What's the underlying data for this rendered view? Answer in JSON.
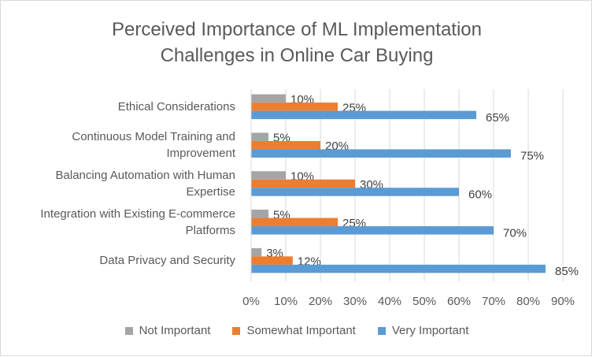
{
  "chart_data": {
    "type": "bar",
    "orientation": "horizontal",
    "title": "Perceived Importance of ML Implementation\nChallenges in Online Car Buying",
    "categories": [
      "Ethical Considerations",
      "Continuous Model Training and\nImprovement",
      "Balancing Automation with Human\nExpertise",
      "Integration with Existing E-commerce\nPlatforms",
      "Data Privacy and Security"
    ],
    "series": [
      {
        "name": "Not Important",
        "color": "#a5a5a5",
        "values": [
          10,
          5,
          10,
          5,
          3
        ]
      },
      {
        "name": "Somewhat Important",
        "color": "#ed7d31",
        "values": [
          25,
          20,
          30,
          25,
          12
        ]
      },
      {
        "name": "Very Important",
        "color": "#5b9bd5",
        "values": [
          65,
          75,
          60,
          70,
          85
        ]
      }
    ],
    "value_format": "percent",
    "x_ticks": [
      "0%",
      "10%",
      "20%",
      "30%",
      "40%",
      "50%",
      "60%",
      "70%",
      "80%",
      "90%"
    ],
    "xlim": [
      0,
      90
    ],
    "grid": true,
    "legend_position": "bottom"
  }
}
